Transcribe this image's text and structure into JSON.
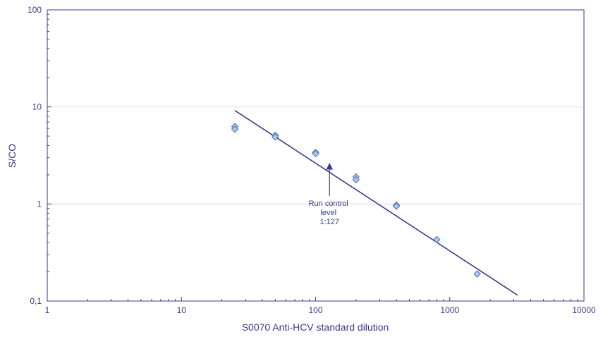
{
  "chart_data": {
    "type": "scatter",
    "title": "",
    "xlabel": "S0070 Anti-HCV standard dilution",
    "ylabel": "S/CO",
    "x_scale": "log",
    "y_scale": "log",
    "xlim": [
      1,
      10000
    ],
    "ylim": [
      0.1,
      100
    ],
    "x_ticks": [
      1,
      10,
      100,
      1000,
      10000
    ],
    "x_tick_labels": [
      "1",
      "10",
      "100",
      "1000",
      "10000"
    ],
    "y_ticks": [
      0.1,
      1,
      10,
      100
    ],
    "y_tick_labels": [
      "0,1",
      "1",
      "10",
      "100"
    ],
    "grid": "horizontal",
    "legend": "none",
    "series": [
      {
        "marker": "diamond",
        "points": [
          {
            "x": 25,
            "y": 6.3
          },
          {
            "x": 25,
            "y": 5.9
          },
          {
            "x": 50,
            "y": 5.1
          },
          {
            "x": 50,
            "y": 4.9
          },
          {
            "x": 100,
            "y": 3.4
          },
          {
            "x": 100,
            "y": 3.3
          },
          {
            "x": 200,
            "y": 1.9
          },
          {
            "x": 200,
            "y": 1.78
          },
          {
            "x": 400,
            "y": 0.97
          },
          {
            "x": 400,
            "y": 0.95
          },
          {
            "x": 800,
            "y": 0.43
          },
          {
            "x": 1600,
            "y": 0.19
          }
        ]
      }
    ],
    "fit_line": {
      "x_start": 25,
      "y_start": 9.2,
      "x_end": 3200,
      "y_end": 0.115
    },
    "annotation": {
      "lines": [
        "Run control",
        "level",
        "1:127"
      ],
      "arrow_target": {
        "x": 127,
        "y": 2.8
      }
    },
    "colors": {
      "axis": "#3a3a8c",
      "line": "#3a3a8c",
      "marker_fill": "#a9c7ea",
      "marker_stroke": "#4f6fb0",
      "grid": "#dcdcdc"
    }
  }
}
